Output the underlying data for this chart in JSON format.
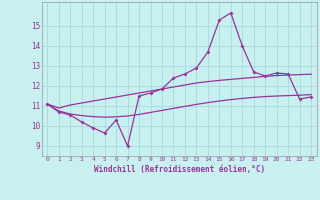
{
  "xlabel": "Windchill (Refroidissement éolien,°C)",
  "bg_color": "#c8f0f0",
  "grid_color": "#aadddd",
  "line_color": "#993399",
  "xlim": [
    -0.5,
    23.5
  ],
  "ylim": [
    8.5,
    16.2
  ],
  "xticks": [
    0,
    1,
    2,
    3,
    4,
    5,
    6,
    7,
    8,
    9,
    10,
    11,
    12,
    13,
    14,
    15,
    16,
    17,
    18,
    19,
    20,
    21,
    22,
    23
  ],
  "yticks": [
    9,
    10,
    11,
    12,
    13,
    14,
    15
  ],
  "main_x": [
    0,
    1,
    2,
    3,
    4,
    5,
    6,
    7,
    8,
    9,
    10,
    11,
    12,
    13,
    14,
    15,
    16,
    17,
    18,
    19,
    20,
    21,
    22,
    23
  ],
  "main_y": [
    11.1,
    10.7,
    10.55,
    10.2,
    9.9,
    9.65,
    10.3,
    9.0,
    11.5,
    11.65,
    11.85,
    12.4,
    12.6,
    12.9,
    13.7,
    15.3,
    15.65,
    14.0,
    12.7,
    12.5,
    12.65,
    12.6,
    11.35,
    11.45
  ],
  "upper_x": [
    0,
    1,
    2,
    3,
    4,
    5,
    6,
    7,
    8,
    9,
    10,
    11,
    12,
    13,
    14,
    15,
    16,
    17,
    18,
    19,
    20,
    21,
    22,
    23
  ],
  "upper_y": [
    11.1,
    10.9,
    11.05,
    11.15,
    11.25,
    11.35,
    11.45,
    11.55,
    11.65,
    11.75,
    11.85,
    11.95,
    12.05,
    12.15,
    12.22,
    12.28,
    12.33,
    12.38,
    12.43,
    12.48,
    12.52,
    12.55,
    12.57,
    12.59
  ],
  "lower_x": [
    0,
    1,
    2,
    3,
    4,
    5,
    6,
    7,
    8,
    9,
    10,
    11,
    12,
    13,
    14,
    15,
    16,
    17,
    18,
    19,
    20,
    21,
    22,
    23
  ],
  "lower_y": [
    11.1,
    10.75,
    10.6,
    10.52,
    10.47,
    10.44,
    10.46,
    10.5,
    10.58,
    10.68,
    10.78,
    10.88,
    10.98,
    11.08,
    11.17,
    11.25,
    11.32,
    11.38,
    11.43,
    11.47,
    11.5,
    11.52,
    11.54,
    11.57
  ]
}
